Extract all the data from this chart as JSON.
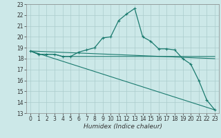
{
  "xlabel": "Humidex (Indice chaleur)",
  "bg_color": "#cce8e8",
  "grid_color": "#aacccc",
  "line_color": "#1a7a6e",
  "xlim": [
    -0.5,
    23.5
  ],
  "ylim": [
    13,
    23
  ],
  "yticks": [
    13,
    14,
    15,
    16,
    17,
    18,
    19,
    20,
    21,
    22,
    23
  ],
  "xticks": [
    0,
    1,
    2,
    3,
    4,
    5,
    6,
    7,
    8,
    9,
    10,
    11,
    12,
    13,
    14,
    15,
    16,
    17,
    18,
    19,
    20,
    21,
    22,
    23
  ],
  "line1_x": [
    0,
    1,
    2,
    3,
    4,
    5,
    6,
    7,
    8,
    9,
    10,
    11,
    12,
    13,
    14,
    15,
    16,
    17,
    18,
    19,
    20,
    21,
    22,
    23
  ],
  "line1_y": [
    18.7,
    18.4,
    18.4,
    18.4,
    18.2,
    18.2,
    18.6,
    18.8,
    19.0,
    19.9,
    20.0,
    21.5,
    22.1,
    22.6,
    20.0,
    19.6,
    18.9,
    18.9,
    18.8,
    18.0,
    17.5,
    16.0,
    14.2,
    13.3
  ],
  "line2_x": [
    0,
    1,
    2,
    3,
    4,
    23
  ],
  "line2_y": [
    18.7,
    18.4,
    18.4,
    18.4,
    18.2,
    18.2
  ],
  "line3_x": [
    0,
    23
  ],
  "line3_y": [
    18.7,
    18.0
  ],
  "line4_x": [
    0,
    23
  ],
  "line4_y": [
    18.7,
    13.3
  ],
  "xlabel_fontsize": 6.5,
  "tick_fontsize": 5.5
}
